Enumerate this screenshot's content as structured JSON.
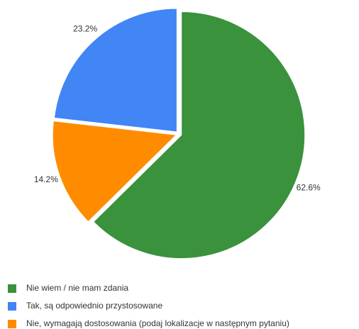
{
  "chart_data": {
    "type": "pie",
    "categories": [
      "Nie wiem / nie mam zdania",
      "Tak, są odpowiednio przystosowane",
      "Nie, wymagają dostosowania (podaj lokalizacje w następnym pytaniu)"
    ],
    "values": [
      62.6,
      23.2,
      14.2
    ],
    "value_labels": [
      "62.6%",
      "23.2%",
      "14.2%"
    ],
    "colors": [
      "#3a923c",
      "#4285f4",
      "#ff8c00"
    ]
  }
}
